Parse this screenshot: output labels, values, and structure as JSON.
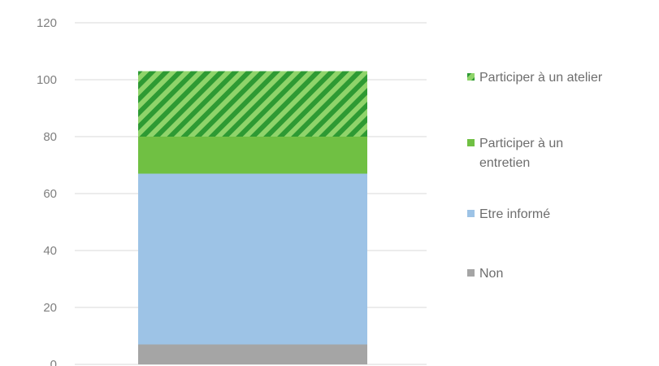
{
  "chart_data": {
    "type": "bar",
    "stacked": true,
    "categories": [
      ""
    ],
    "ylim": [
      0,
      120
    ],
    "yticks": [
      0,
      20,
      40,
      60,
      80,
      100,
      120
    ],
    "grid": true,
    "legend_position": "right",
    "series": [
      {
        "name": "Non",
        "values": [
          7
        ],
        "color": "#a5a5a5",
        "pattern": "solid"
      },
      {
        "name": "Etre informé",
        "values": [
          60
        ],
        "color": "#9dc3e6",
        "pattern": "solid"
      },
      {
        "name": "Participer à un entretien",
        "values": [
          13
        ],
        "color": "#70c043",
        "pattern": "solid"
      },
      {
        "name": "Participer à un atelier",
        "values": [
          23
        ],
        "color": "#3aa23a",
        "pattern": "hatch"
      }
    ],
    "legend_order": [
      "Participer à un atelier",
      "Participer à un entretien",
      "Etre informé",
      "Non"
    ]
  }
}
